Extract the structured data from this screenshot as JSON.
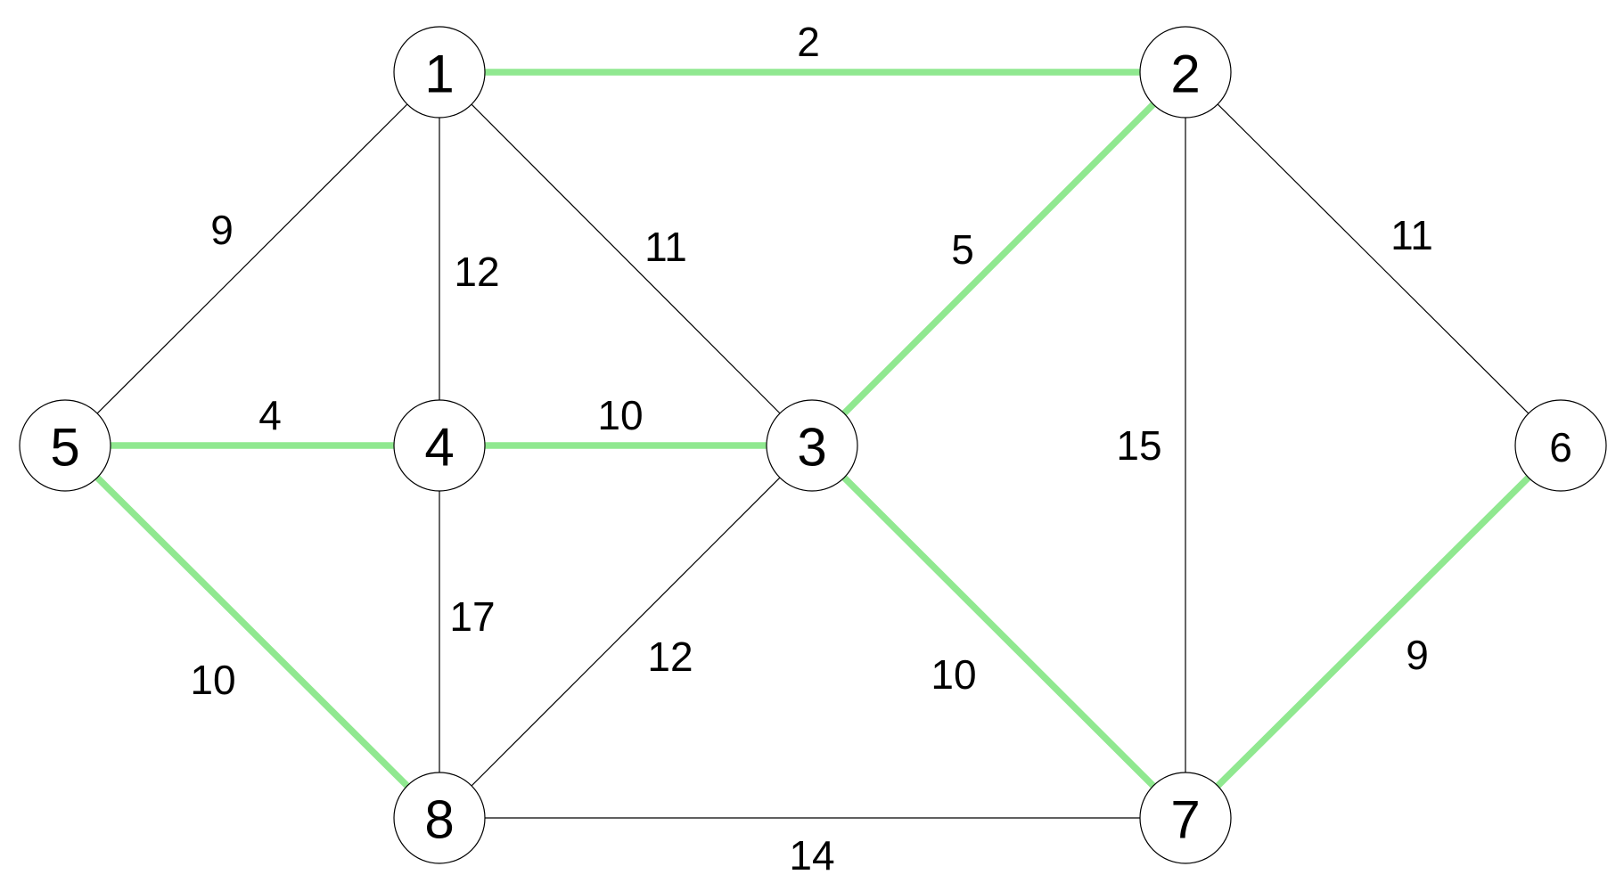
{
  "colors": {
    "tree_edge": "#90e890",
    "edge": "#000000",
    "node_fill": "#ffffff"
  },
  "nodes": [
    {
      "id": "1",
      "label": "1"
    },
    {
      "id": "2",
      "label": "2"
    },
    {
      "id": "3",
      "label": "3"
    },
    {
      "id": "4",
      "label": "4"
    },
    {
      "id": "5",
      "label": "5"
    },
    {
      "id": "6",
      "label": "6"
    },
    {
      "id": "7",
      "label": "7"
    },
    {
      "id": "8",
      "label": "8"
    }
  ],
  "edges": [
    {
      "from": "1",
      "to": "2",
      "weight": "2",
      "highlighted": true
    },
    {
      "from": "1",
      "to": "5",
      "weight": "9",
      "highlighted": false
    },
    {
      "from": "1",
      "to": "4",
      "weight": "12",
      "highlighted": false
    },
    {
      "from": "1",
      "to": "3",
      "weight": "11",
      "highlighted": false
    },
    {
      "from": "2",
      "to": "3",
      "weight": "5",
      "highlighted": true
    },
    {
      "from": "2",
      "to": "7",
      "weight": "15",
      "highlighted": false
    },
    {
      "from": "2",
      "to": "6",
      "weight": "11",
      "highlighted": false
    },
    {
      "from": "5",
      "to": "4",
      "weight": "4",
      "highlighted": true
    },
    {
      "from": "4",
      "to": "3",
      "weight": "10",
      "highlighted": true
    },
    {
      "from": "5",
      "to": "8",
      "weight": "10",
      "highlighted": true
    },
    {
      "from": "4",
      "to": "8",
      "weight": "17",
      "highlighted": false
    },
    {
      "from": "3",
      "to": "8",
      "weight": "12",
      "highlighted": false
    },
    {
      "from": "3",
      "to": "7",
      "weight": "10",
      "highlighted": true
    },
    {
      "from": "6",
      "to": "7",
      "weight": "9",
      "highlighted": true
    },
    {
      "from": "8",
      "to": "7",
      "weight": "14",
      "highlighted": false
    }
  ]
}
